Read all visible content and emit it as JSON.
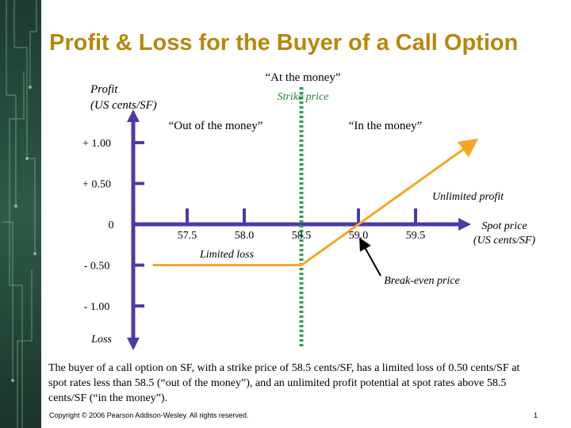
{
  "slide": {
    "title": "Profit & Loss for the Buyer of a Call Option",
    "caption": "The buyer of a call option on SF, with a strike price of 58.5 cents/SF, has a limited loss of 0.50 cents/SF at spot rates less than 58.5 (“out of the money”), and an unlimited profit potential at spot rates above 58.5 cents/SF (“in the money”).",
    "copyright": "Copyright © 2006 Pearson Addison-Wesley. All rights reserved.",
    "page_number": "1"
  },
  "colors": {
    "title": "#b8860b",
    "payoff_line": "#f5a623",
    "axis": "#4b3aa8",
    "strike_line": "#2e9e5b",
    "strike_label": "#2e7d32",
    "arrow": "#000000"
  },
  "chart_data": {
    "type": "line",
    "title": "",
    "ylabel_lines": [
      "Profit",
      "(US cents/SF)"
    ],
    "bottom_label": "Loss",
    "xlabel_lines": [
      "Spot price",
      "(US cents/SF)"
    ],
    "x_ticks": [
      57.5,
      58.0,
      58.5,
      59.0,
      59.5
    ],
    "x_tick_labels": [
      "57.5",
      "58.0",
      "58.5",
      "59.0",
      "59.5"
    ],
    "y_ticks": [
      1.0,
      0.5,
      0,
      -0.5,
      -1.0
    ],
    "y_tick_labels": [
      "+ 1.00",
      "+ 0.50",
      "0",
      "- 0.50",
      "- 1.00"
    ],
    "xlim": [
      56.9,
      60.3
    ],
    "ylim": [
      -1.5,
      1.3
    ],
    "series": [
      {
        "x": [
          57.2,
          58.5,
          60.0
        ],
        "y": [
          -0.5,
          -0.5,
          1.0
        ]
      }
    ],
    "strike_price": 58.5,
    "break_even": 59.0,
    "annotations": {
      "at_the_money": "“At the money”",
      "strike_price": "Strike price",
      "out_of_money": "“Out of the money”",
      "in_the_money": "“In the money”",
      "unlimited_profit": "Unlimited profit",
      "limited_loss": "Limited loss",
      "break_even": "Break-even price"
    }
  }
}
